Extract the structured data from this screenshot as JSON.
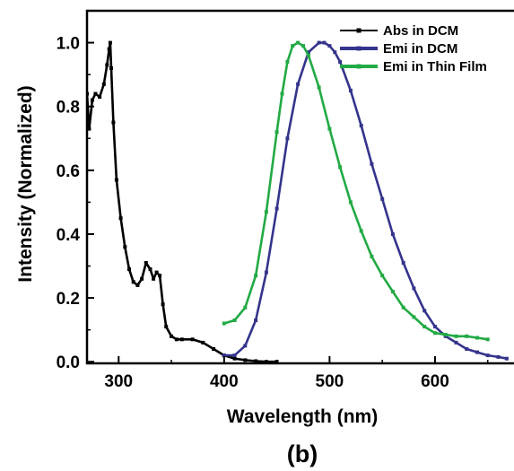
{
  "chart_data": {
    "type": "line",
    "caption": "(b)",
    "xlabel": "Wavelength (nm)",
    "ylabel": "Intensity (Normalized)",
    "xlim": [
      270,
      680
    ],
    "ylim": [
      -0.005,
      1.1
    ],
    "x_ticks": [
      300,
      400,
      500,
      600
    ],
    "y_ticks": [
      0.0,
      0.2,
      0.4,
      0.6,
      0.8,
      1.0
    ],
    "x_tick_labels": [
      "300",
      "400",
      "500",
      "600"
    ],
    "y_tick_labels": [
      "0.0",
      "0.2",
      "0.4",
      "0.6",
      "0.8",
      "1.0"
    ],
    "grid": false,
    "legend_position": "top-right",
    "series": [
      {
        "name": "Abs in DCM",
        "color": "#000000",
        "marker": "square",
        "x": [
          270,
          272,
          275,
          278,
          282,
          286,
          289,
          291,
          292,
          293,
          295,
          298,
          302,
          306,
          310,
          314,
          318,
          322,
          326,
          330,
          333,
          336,
          339,
          342,
          345,
          350,
          355,
          360,
          370,
          380,
          390,
          400,
          410,
          420,
          430,
          440,
          450
        ],
        "y": [
          0.84,
          0.73,
          0.82,
          0.84,
          0.83,
          0.87,
          0.93,
          0.98,
          1.0,
          0.92,
          0.75,
          0.57,
          0.45,
          0.36,
          0.29,
          0.25,
          0.24,
          0.26,
          0.31,
          0.29,
          0.26,
          0.28,
          0.27,
          0.18,
          0.11,
          0.08,
          0.07,
          0.07,
          0.07,
          0.06,
          0.04,
          0.02,
          0.01,
          0.005,
          0.002,
          0.0,
          0.0
        ]
      },
      {
        "name": "Emi in DCM",
        "color": "#34348c",
        "marker": "square",
        "x": [
          400,
          410,
          420,
          430,
          440,
          450,
          460,
          470,
          480,
          490,
          495,
          500,
          505,
          510,
          520,
          530,
          540,
          550,
          560,
          570,
          580,
          590,
          600,
          610,
          620,
          630,
          640,
          650,
          660,
          668
        ],
        "y": [
          0.02,
          0.02,
          0.05,
          0.13,
          0.28,
          0.48,
          0.7,
          0.87,
          0.97,
          1.0,
          1.0,
          0.99,
          0.97,
          0.94,
          0.85,
          0.74,
          0.62,
          0.51,
          0.4,
          0.31,
          0.23,
          0.16,
          0.11,
          0.08,
          0.06,
          0.04,
          0.03,
          0.02,
          0.015,
          0.01
        ]
      },
      {
        "name": "Emi in Thin Film",
        "color": "#22aa44",
        "marker": "square",
        "x": [
          400,
          410,
          420,
          430,
          440,
          450,
          455,
          460,
          465,
          470,
          475,
          480,
          490,
          500,
          510,
          520,
          530,
          540,
          550,
          560,
          570,
          580,
          590,
          600,
          610,
          620,
          630,
          640,
          650
        ],
        "y": [
          0.12,
          0.13,
          0.17,
          0.27,
          0.47,
          0.72,
          0.84,
          0.94,
          0.99,
          1.0,
          0.99,
          0.96,
          0.86,
          0.73,
          0.61,
          0.5,
          0.41,
          0.33,
          0.27,
          0.22,
          0.17,
          0.14,
          0.11,
          0.09,
          0.085,
          0.08,
          0.08,
          0.075,
          0.07
        ]
      }
    ]
  }
}
